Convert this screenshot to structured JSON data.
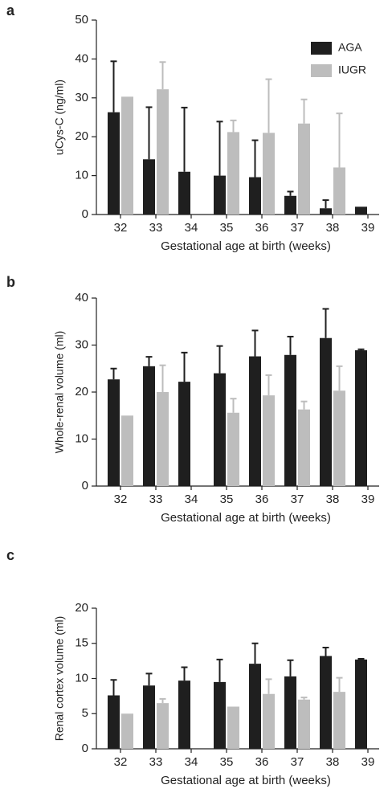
{
  "chart_data": [
    {
      "type": "bar",
      "label": "a",
      "ylabel": "uCys-C (ng/ml)",
      "xlabel": "Gestational age at birth (weeks)",
      "categories": [
        "32",
        "33",
        "34",
        "35",
        "36",
        "37",
        "38",
        "39"
      ],
      "series": [
        {
          "name": "AGA",
          "color": "#1f1f1f",
          "values": [
            26.3,
            14.2,
            11,
            10,
            9.6,
            4.8,
            1.6,
            2.0
          ],
          "errors": [
            13.1,
            13.4,
            16.5,
            13.9,
            9.5,
            1.1,
            2.1,
            null
          ]
        },
        {
          "name": "IUGR",
          "color": "#bdbdbd",
          "values": [
            30.3,
            32.2,
            null,
            21.2,
            21,
            23.4,
            12.1,
            null
          ],
          "errors": [
            null,
            7.0,
            null,
            3.0,
            13.8,
            6.2,
            13.9,
            null
          ]
        }
      ],
      "ylim": [
        0,
        50
      ],
      "yticks": [
        0,
        10,
        20,
        30,
        40,
        50
      ],
      "legend": "top-right"
    },
    {
      "type": "bar",
      "label": "b",
      "ylabel": "Whole-renal volume (ml)",
      "xlabel": "Gestational age at birth (weeks)",
      "categories": [
        "32",
        "33",
        "34",
        "35",
        "36",
        "37",
        "38",
        "39"
      ],
      "series": [
        {
          "name": "AGA",
          "color": "#1f1f1f",
          "values": [
            22.7,
            25.5,
            22.2,
            24,
            27.6,
            27.9,
            31.5,
            28.9
          ],
          "errors": [
            2.3,
            2.0,
            6.2,
            5.8,
            5.5,
            3.9,
            6.2,
            0.2
          ]
        },
        {
          "name": "IUGR",
          "color": "#bdbdbd",
          "values": [
            15,
            20,
            null,
            15.6,
            19.3,
            16.3,
            20.3,
            null
          ],
          "errors": [
            null,
            5.7,
            null,
            3.0,
            4.3,
            1.7,
            5.2,
            null
          ]
        }
      ],
      "ylim": [
        0,
        40
      ],
      "yticks": [
        0,
        10,
        20,
        30,
        40
      ],
      "legend": false
    },
    {
      "type": "bar",
      "label": "c",
      "ylabel": "Renal cortex volume (ml)",
      "xlabel": "Gestational age at birth (weeks)",
      "categories": [
        "32",
        "33",
        "34",
        "35",
        "36",
        "37",
        "38",
        "39"
      ],
      "series": [
        {
          "name": "AGA",
          "color": "#1f1f1f",
          "values": [
            7.6,
            9.0,
            9.7,
            9.5,
            12.1,
            10.3,
            13.2,
            12.7
          ],
          "errors": [
            2.2,
            1.7,
            1.9,
            3.2,
            2.9,
            2.3,
            1.2,
            0.1
          ]
        },
        {
          "name": "IUGR",
          "color": "#bdbdbd",
          "values": [
            5.0,
            6.5,
            null,
            6.0,
            7.8,
            7.0,
            8.1,
            null
          ],
          "errors": [
            null,
            0.6,
            null,
            null,
            2.1,
            0.3,
            2.0,
            null
          ]
        }
      ],
      "ylim": [
        0,
        20
      ],
      "yticks": [
        0,
        5,
        10,
        15,
        20
      ],
      "legend": false
    }
  ]
}
